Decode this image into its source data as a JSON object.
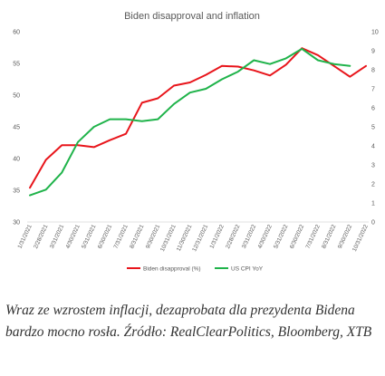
{
  "chart_data": {
    "type": "line",
    "title": "Biden disapproval and inflation",
    "xlabel": "",
    "ylabel": "",
    "x": [
      "1/31/2021",
      "2/28/2021",
      "3/31/2021",
      "4/30/2021",
      "5/31/2021",
      "6/30/2021",
      "7/31/2021",
      "8/31/2021",
      "9/30/2021",
      "10/31/2021",
      "11/30/2021",
      "12/31/2021",
      "1/31/2022",
      "2/28/2022",
      "3/31/2022",
      "4/30/2022",
      "5/31/2022",
      "6/30/2022",
      "7/31/2022",
      "8/31/2022",
      "9/30/2022",
      "10/31/2022"
    ],
    "series": [
      {
        "name": "Biden disapproval (%)",
        "axis": "left",
        "color": "#e8151b",
        "values": [
          35.4,
          39.8,
          42.1,
          42.1,
          41.8,
          42.9,
          43.9,
          48.8,
          49.5,
          51.5,
          52.0,
          53.2,
          54.6,
          54.5,
          53.9,
          53.1,
          54.8,
          57.4,
          56.3,
          54.6,
          52.9,
          54.6
        ]
      },
      {
        "name": "US CPI YoY",
        "axis": "right",
        "color": "#1fb34a",
        "values": [
          1.4,
          1.7,
          2.6,
          4.2,
          5.0,
          5.4,
          5.4,
          5.3,
          5.4,
          6.2,
          6.8,
          7.0,
          7.5,
          7.9,
          8.5,
          8.3,
          8.6,
          9.1,
          8.5,
          8.3,
          8.2,
          null
        ]
      }
    ],
    "y_left": {
      "ylim": [
        30,
        60
      ],
      "ticks": [
        30,
        35,
        40,
        45,
        50,
        55,
        60
      ]
    },
    "y_right": {
      "ylim": [
        0,
        10
      ],
      "ticks": [
        0,
        1,
        2,
        3,
        4,
        5,
        6,
        7,
        8,
        9,
        10
      ]
    },
    "grid": false,
    "legend_position": "bottom"
  },
  "caption": "Wraz ze wzrostem inflacji, dezaprobata dla prezydenta Bidena bardzo mocno rosła. Źródło: RealClearPolitics, Bloomberg, XTB"
}
